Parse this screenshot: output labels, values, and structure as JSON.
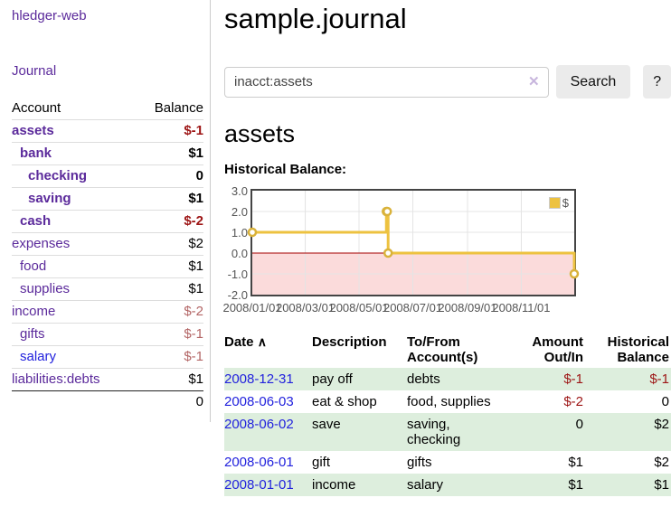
{
  "colors": {
    "link_purple": "#5b2a9b",
    "link_blue": "#2222dd",
    "negative_strong": "#9d1515",
    "negative_soft": "#b36565",
    "row_green": "#ddeedd",
    "series_gold": "#edc240",
    "marker_ring": "#d9b23a",
    "negative_region_pink": "#fbdbdb",
    "zero_line_red": "#a40000",
    "gridline": "#e4e4e4",
    "plot_border": "#444444",
    "button_gray": "#ebebeb"
  },
  "sidebar": {
    "brand": "hledger-web",
    "journal_link": "Journal",
    "accounts_table": {
      "headers": {
        "account": "Account",
        "balance": "Balance"
      },
      "rows": [
        {
          "name": "assets",
          "depth": 1,
          "bold": true,
          "balance": "$-1",
          "negative": true,
          "strong": true
        },
        {
          "name": "bank",
          "depth": 2,
          "bold": true,
          "balance": "$1"
        },
        {
          "name": "checking",
          "depth": 3,
          "bold": true,
          "balance": "0"
        },
        {
          "name": "saving",
          "depth": 3,
          "bold": true,
          "balance": "$1"
        },
        {
          "name": "cash",
          "depth": 2,
          "bold": true,
          "balance": "$-2",
          "negative": true,
          "strong": true
        },
        {
          "name": "expenses",
          "depth": 1,
          "bold": false,
          "balance": "$2"
        },
        {
          "name": "food",
          "depth": 2,
          "bold": false,
          "balance": "$1"
        },
        {
          "name": "supplies",
          "depth": 2,
          "bold": false,
          "balance": "$1"
        },
        {
          "name": "income",
          "depth": 1,
          "bold": false,
          "balance": "$-2",
          "negative": true
        },
        {
          "name": "gifts",
          "depth": 2,
          "bold": false,
          "balance": "$-1",
          "negative": true
        },
        {
          "name": "salary",
          "depth": 2,
          "bold": false,
          "balance": "$-1",
          "negative": true,
          "blue": true
        },
        {
          "name": "liabilities:debts",
          "depth": 1,
          "bold": false,
          "balance": "$1"
        }
      ],
      "total": "0"
    }
  },
  "main": {
    "title": "sample.journal",
    "search": {
      "value": "inacct:assets",
      "clear_icon": "✕",
      "search_button": "Search",
      "help_button": "?"
    },
    "account_heading": "assets",
    "chart_heading": "Historical Balance:",
    "register": {
      "headers": {
        "date": "Date",
        "sort_icon": "∧",
        "description": "Description",
        "accounts": "To/From Account(s)",
        "amount": "Amount Out/In",
        "balance": "Historical Balance"
      },
      "rows": [
        {
          "date": "2008-12-31",
          "description": "pay off",
          "accounts": "debts",
          "amount": "$-1",
          "balance": "$-1"
        },
        {
          "date": "2008-06-03",
          "description": "eat & shop",
          "accounts": "food, supplies",
          "amount": "$-2",
          "balance": "0"
        },
        {
          "date": "2008-06-02",
          "description": "save",
          "accounts": "saving, checking",
          "amount": "0",
          "balance": "$2"
        },
        {
          "date": "2008-06-01",
          "description": "gift",
          "accounts": "gifts",
          "amount": "$1",
          "balance": "$2"
        },
        {
          "date": "2008-01-01",
          "description": "income",
          "accounts": "salary",
          "amount": "$1",
          "balance": "$1"
        }
      ]
    }
  },
  "chart_data": {
    "type": "line",
    "title": "Historical Balance:",
    "legend": [
      {
        "label": "$",
        "color": "#edc240"
      }
    ],
    "legend_position": "top-right",
    "grid": true,
    "ylim": [
      -2,
      3
    ],
    "yticks": [
      {
        "label": "3.0",
        "value": 3
      },
      {
        "label": "2.0",
        "value": 2
      },
      {
        "label": "1.0",
        "value": 1
      },
      {
        "label": "0.0",
        "value": 0
      },
      {
        "label": "-1.0",
        "value": -1
      },
      {
        "label": "-2.0",
        "value": -2
      }
    ],
    "x_range_days": 365,
    "xticks": [
      {
        "label": "2008/01/01",
        "day": 0
      },
      {
        "label": "2008/03/01",
        "day": 60
      },
      {
        "label": "2008/05/01",
        "day": 121
      },
      {
        "label": "2008/07/01",
        "day": 182
      },
      {
        "label": "2008/09/01",
        "day": 244
      },
      {
        "label": "2008/11/01",
        "day": 305
      }
    ],
    "series": [
      {
        "name": "$",
        "color": "#edc240",
        "steps": true,
        "points": [
          {
            "date": "2008-01-01",
            "day": 0,
            "value": 1
          },
          {
            "date": "2008-06-01",
            "day": 152,
            "value": 2
          },
          {
            "date": "2008-06-02",
            "day": 153,
            "value": 2
          },
          {
            "date": "2008-06-03",
            "day": 154,
            "value": 0
          },
          {
            "date": "2008-12-31",
            "day": 365,
            "value": -1
          }
        ]
      }
    ],
    "negative_region_color": "#fbdbdb",
    "zero_line_color": "#a40000"
  }
}
